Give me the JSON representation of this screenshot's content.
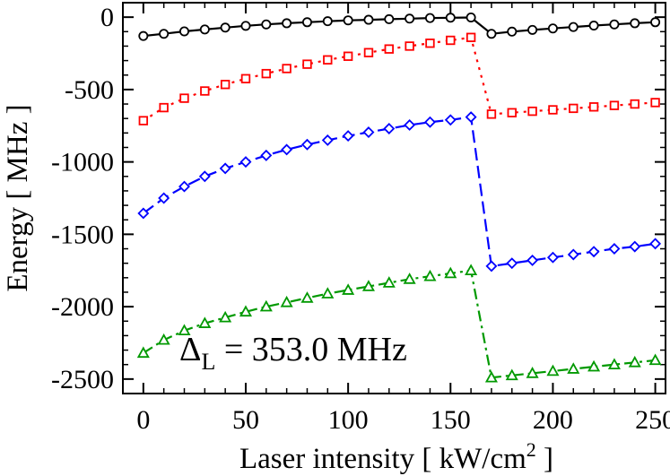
{
  "chart_data": {
    "type": "line",
    "title": "",
    "xlabel": "Laser intensity [ kW/cm",
    "xlabel_sup": "2",
    "xlabel_end": " ]",
    "ylabel": "Energy [ MHz ]",
    "xlim": [
      -10,
      255
    ],
    "ylim": [
      -2600,
      100
    ],
    "xticks": [
      0,
      50,
      100,
      150,
      200,
      250
    ],
    "yticks": [
      0,
      -500,
      -1000,
      -1500,
      -2000,
      -2500
    ],
    "xtick_labels": [
      "0",
      "50",
      "100",
      "150",
      "200",
      "250"
    ],
    "ytick_labels": [
      "0",
      "-500",
      "-1000",
      "-1500",
      "-2000",
      "-2500"
    ],
    "annotation": {
      "delta": "Δ",
      "sub": "L",
      "text": " = 353.0 MHz"
    },
    "x": [
      0,
      10,
      20,
      30,
      40,
      50,
      60,
      70,
      80,
      90,
      100,
      110,
      120,
      130,
      140,
      150,
      160,
      170,
      180,
      190,
      200,
      210,
      220,
      230,
      240,
      250
    ],
    "series": [
      {
        "name": "black-circles",
        "color": "#000000",
        "marker": "circle",
        "dash": "",
        "values": [
          -130,
          -115,
          -98,
          -85,
          -72,
          -60,
          -50,
          -42,
          -35,
          -28,
          -22,
          -18,
          -14,
          -10,
          -6,
          -4,
          -2,
          -115,
          -100,
          -88,
          -78,
          -68,
          -58,
          -50,
          -42,
          -35
        ]
      },
      {
        "name": "red-squares",
        "color": "#ff0000",
        "marker": "square",
        "dash": "3,6",
        "values": [
          -715,
          -625,
          -560,
          -510,
          -465,
          -425,
          -390,
          -355,
          -325,
          -295,
          -270,
          -245,
          -220,
          -200,
          -180,
          -160,
          -140,
          -670,
          -660,
          -650,
          -640,
          -630,
          -620,
          -610,
          -600,
          -590
        ]
      },
      {
        "name": "blue-diamonds",
        "color": "#0000ff",
        "marker": "diamond",
        "dash": "14,6",
        "values": [
          -1355,
          -1250,
          -1170,
          -1100,
          -1045,
          -1000,
          -955,
          -915,
          -880,
          -850,
          -820,
          -795,
          -770,
          -745,
          -725,
          -710,
          -690,
          -1720,
          -1700,
          -1680,
          -1660,
          -1640,
          -1620,
          -1600,
          -1585,
          -1565
        ]
      },
      {
        "name": "green-triangles",
        "color": "#009900",
        "marker": "triangle",
        "dash": "12,5,3,5",
        "values": [
          -2320,
          -2230,
          -2165,
          -2115,
          -2075,
          -2035,
          -2000,
          -1970,
          -1940,
          -1910,
          -1885,
          -1860,
          -1835,
          -1810,
          -1790,
          -1770,
          -1750,
          -2490,
          -2475,
          -2460,
          -2445,
          -2430,
          -2415,
          -2400,
          -2385,
          -2370
        ]
      }
    ]
  }
}
